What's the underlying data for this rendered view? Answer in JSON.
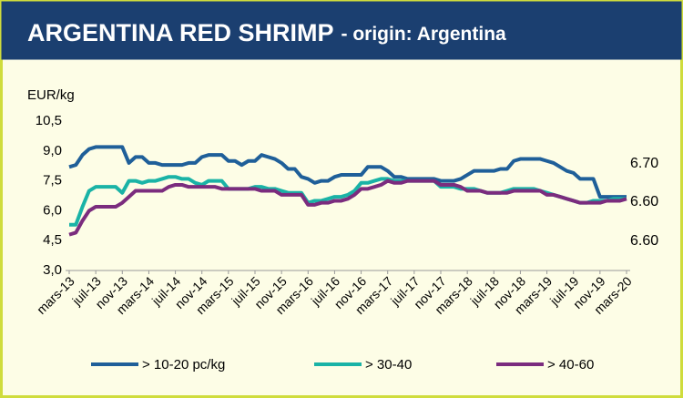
{
  "chart_data": {
    "type": "line",
    "title": "ARGENTINA RED SHRIMP",
    "subtitle": "- origin: Argentina",
    "y_label": "EUR/kg",
    "categories": [
      "mars-13",
      null,
      null,
      null,
      "juil-13",
      null,
      null,
      null,
      "nov-13",
      null,
      null,
      null,
      "mars-14",
      null,
      null,
      null,
      "juil-14",
      null,
      null,
      null,
      "nov-14",
      null,
      null,
      null,
      "mars-15",
      null,
      null,
      null,
      "juil-15",
      null,
      null,
      null,
      "nov-15",
      null,
      null,
      null,
      "mars-16",
      null,
      null,
      null,
      "juil-16",
      null,
      null,
      null,
      "nov-16",
      null,
      null,
      null,
      "mars-17",
      null,
      null,
      null,
      "juil-17",
      null,
      null,
      null,
      "nov-17",
      null,
      null,
      null,
      "mars-18",
      null,
      null,
      null,
      "juil-18",
      null,
      null,
      null,
      "nov-18",
      null,
      null,
      null,
      "mars-19",
      null,
      null,
      null,
      "juil-19",
      null,
      null,
      null,
      "nov-19",
      null,
      null,
      null,
      "mars-20"
    ],
    "series": [
      {
        "name": "> 10-20 pc/kg",
        "color": "#1f5f99",
        "values": [
          8.2,
          8.3,
          8.8,
          9.1,
          9.2,
          9.2,
          9.2,
          9.2,
          9.2,
          8.4,
          8.7,
          8.7,
          8.4,
          8.4,
          8.3,
          8.3,
          8.3,
          8.3,
          8.4,
          8.4,
          8.7,
          8.8,
          8.8,
          8.8,
          8.5,
          8.5,
          8.3,
          8.5,
          8.5,
          8.8,
          8.7,
          8.6,
          8.4,
          8.1,
          8.1,
          7.7,
          7.6,
          7.4,
          7.5,
          7.5,
          7.7,
          7.8,
          7.8,
          7.8,
          7.8,
          8.2,
          8.2,
          8.2,
          8.0,
          7.7,
          7.7,
          7.6,
          7.6,
          7.6,
          7.6,
          7.6,
          7.5,
          7.5,
          7.5,
          7.6,
          7.8,
          8.0,
          8.0,
          8.0,
          8.0,
          8.1,
          8.1,
          8.5,
          8.6,
          8.6,
          8.6,
          8.6,
          8.5,
          8.4,
          8.2,
          8.0,
          7.9,
          7.6,
          7.6,
          7.6,
          6.7,
          6.7,
          6.7,
          6.7,
          6.7
        ]
      },
      {
        "name": "> 30-40",
        "color": "#1ab3a6",
        "values": [
          5.3,
          5.3,
          6.2,
          7.0,
          7.2,
          7.2,
          7.2,
          7.2,
          6.9,
          7.5,
          7.5,
          7.4,
          7.5,
          7.5,
          7.6,
          7.7,
          7.7,
          7.6,
          7.6,
          7.4,
          7.3,
          7.5,
          7.5,
          7.5,
          7.1,
          7.1,
          7.1,
          7.1,
          7.2,
          7.2,
          7.1,
          7.1,
          7.0,
          6.9,
          6.9,
          6.9,
          6.4,
          6.5,
          6.5,
          6.6,
          6.7,
          6.7,
          6.8,
          7.0,
          7.4,
          7.4,
          7.5,
          7.6,
          7.6,
          7.5,
          7.5,
          7.5,
          7.5,
          7.5,
          7.5,
          7.5,
          7.2,
          7.2,
          7.2,
          7.1,
          7.1,
          7.1,
          7.0,
          6.9,
          6.9,
          6.9,
          7.0,
          7.1,
          7.1,
          7.1,
          7.1,
          7.0,
          6.9,
          6.8,
          6.7,
          6.6,
          6.5,
          6.4,
          6.4,
          6.5,
          6.5,
          6.5,
          6.6,
          6.6,
          6.6
        ]
      },
      {
        "name": "> 40-60",
        "color": "#7b2c7e",
        "values": [
          4.8,
          4.9,
          5.5,
          6.0,
          6.2,
          6.2,
          6.2,
          6.2,
          6.4,
          6.7,
          7.0,
          7.0,
          7.0,
          7.0,
          7.0,
          7.2,
          7.3,
          7.3,
          7.2,
          7.2,
          7.2,
          7.2,
          7.2,
          7.1,
          7.1,
          7.1,
          7.1,
          7.1,
          7.1,
          7.0,
          7.0,
          7.0,
          6.8,
          6.8,
          6.8,
          6.8,
          6.3,
          6.3,
          6.4,
          6.4,
          6.5,
          6.5,
          6.6,
          6.8,
          7.1,
          7.1,
          7.2,
          7.3,
          7.5,
          7.4,
          7.4,
          7.5,
          7.5,
          7.5,
          7.5,
          7.5,
          7.3,
          7.3,
          7.3,
          7.2,
          7.0,
          7.0,
          7.0,
          6.9,
          6.9,
          6.9,
          6.9,
          7.0,
          7.0,
          7.0,
          7.0,
          7.0,
          6.8,
          6.8,
          6.7,
          6.6,
          6.5,
          6.4,
          6.4,
          6.4,
          6.4,
          6.5,
          6.5,
          6.5,
          6.6
        ]
      }
    ],
    "ylim": [
      3,
      10.5
    ],
    "yticks": [
      {
        "value": 3,
        "label": "3,0"
      },
      {
        "value": 4.5,
        "label": "4,5"
      },
      {
        "value": 6,
        "label": "6,0"
      },
      {
        "value": 7.5,
        "label": "7,5"
      },
      {
        "value": 9,
        "label": "9,0"
      },
      {
        "value": 10.5,
        "label": "10,5"
      }
    ],
    "grid": false,
    "annotations": [
      "6.70",
      "6.60",
      "6.60"
    ],
    "annotation_color": "#1f5f99",
    "legend": "bottom"
  }
}
